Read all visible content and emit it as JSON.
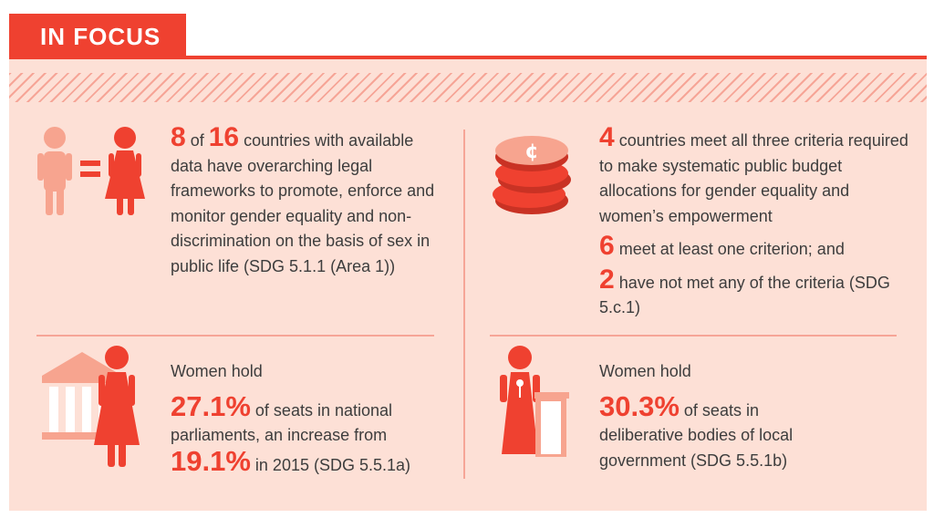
{
  "header": {
    "tab_label": "IN FOCUS"
  },
  "colors": {
    "accent": "#ef4130",
    "panel_bg": "#fde0d6",
    "accent_light": "#f6a597",
    "text": "#3d3d3d"
  },
  "stat_legal": {
    "num1": "8",
    "of_word": "of",
    "num2": "16",
    "text": "countries with available data have overarching legal frameworks to promote, enforce and monitor gender equality and non-discrimination on the basis of sex in public life (SDG 5.1.1 (Area 1))"
  },
  "stat_budget": {
    "line1_num": "4",
    "line1_text": "countries meet all three criteria required to make systematic public budget allocations for gender equality and women’s empowerment",
    "line2_num": "6",
    "line2_text": "meet at least one criterion; and",
    "line3_num": "2",
    "line3_text": "have not met any of the criteria (SDG 5.c.1)"
  },
  "stat_parliament": {
    "lead": "Women hold",
    "value": "27.1%",
    "text": "of seats in national parliaments, an increase from",
    "value2": "19.1%",
    "text2": "in 2015 (SDG 5.5.1a)"
  },
  "stat_local": {
    "lead": "Women hold",
    "value": "30.3%",
    "text": "of seats in deliberative bodies of local government (SDG 5.5.1b)"
  },
  "icons": [
    "man-woman-equal-icon",
    "coin-stack-icon",
    "parliament-woman-icon",
    "woman-podium-icon"
  ]
}
